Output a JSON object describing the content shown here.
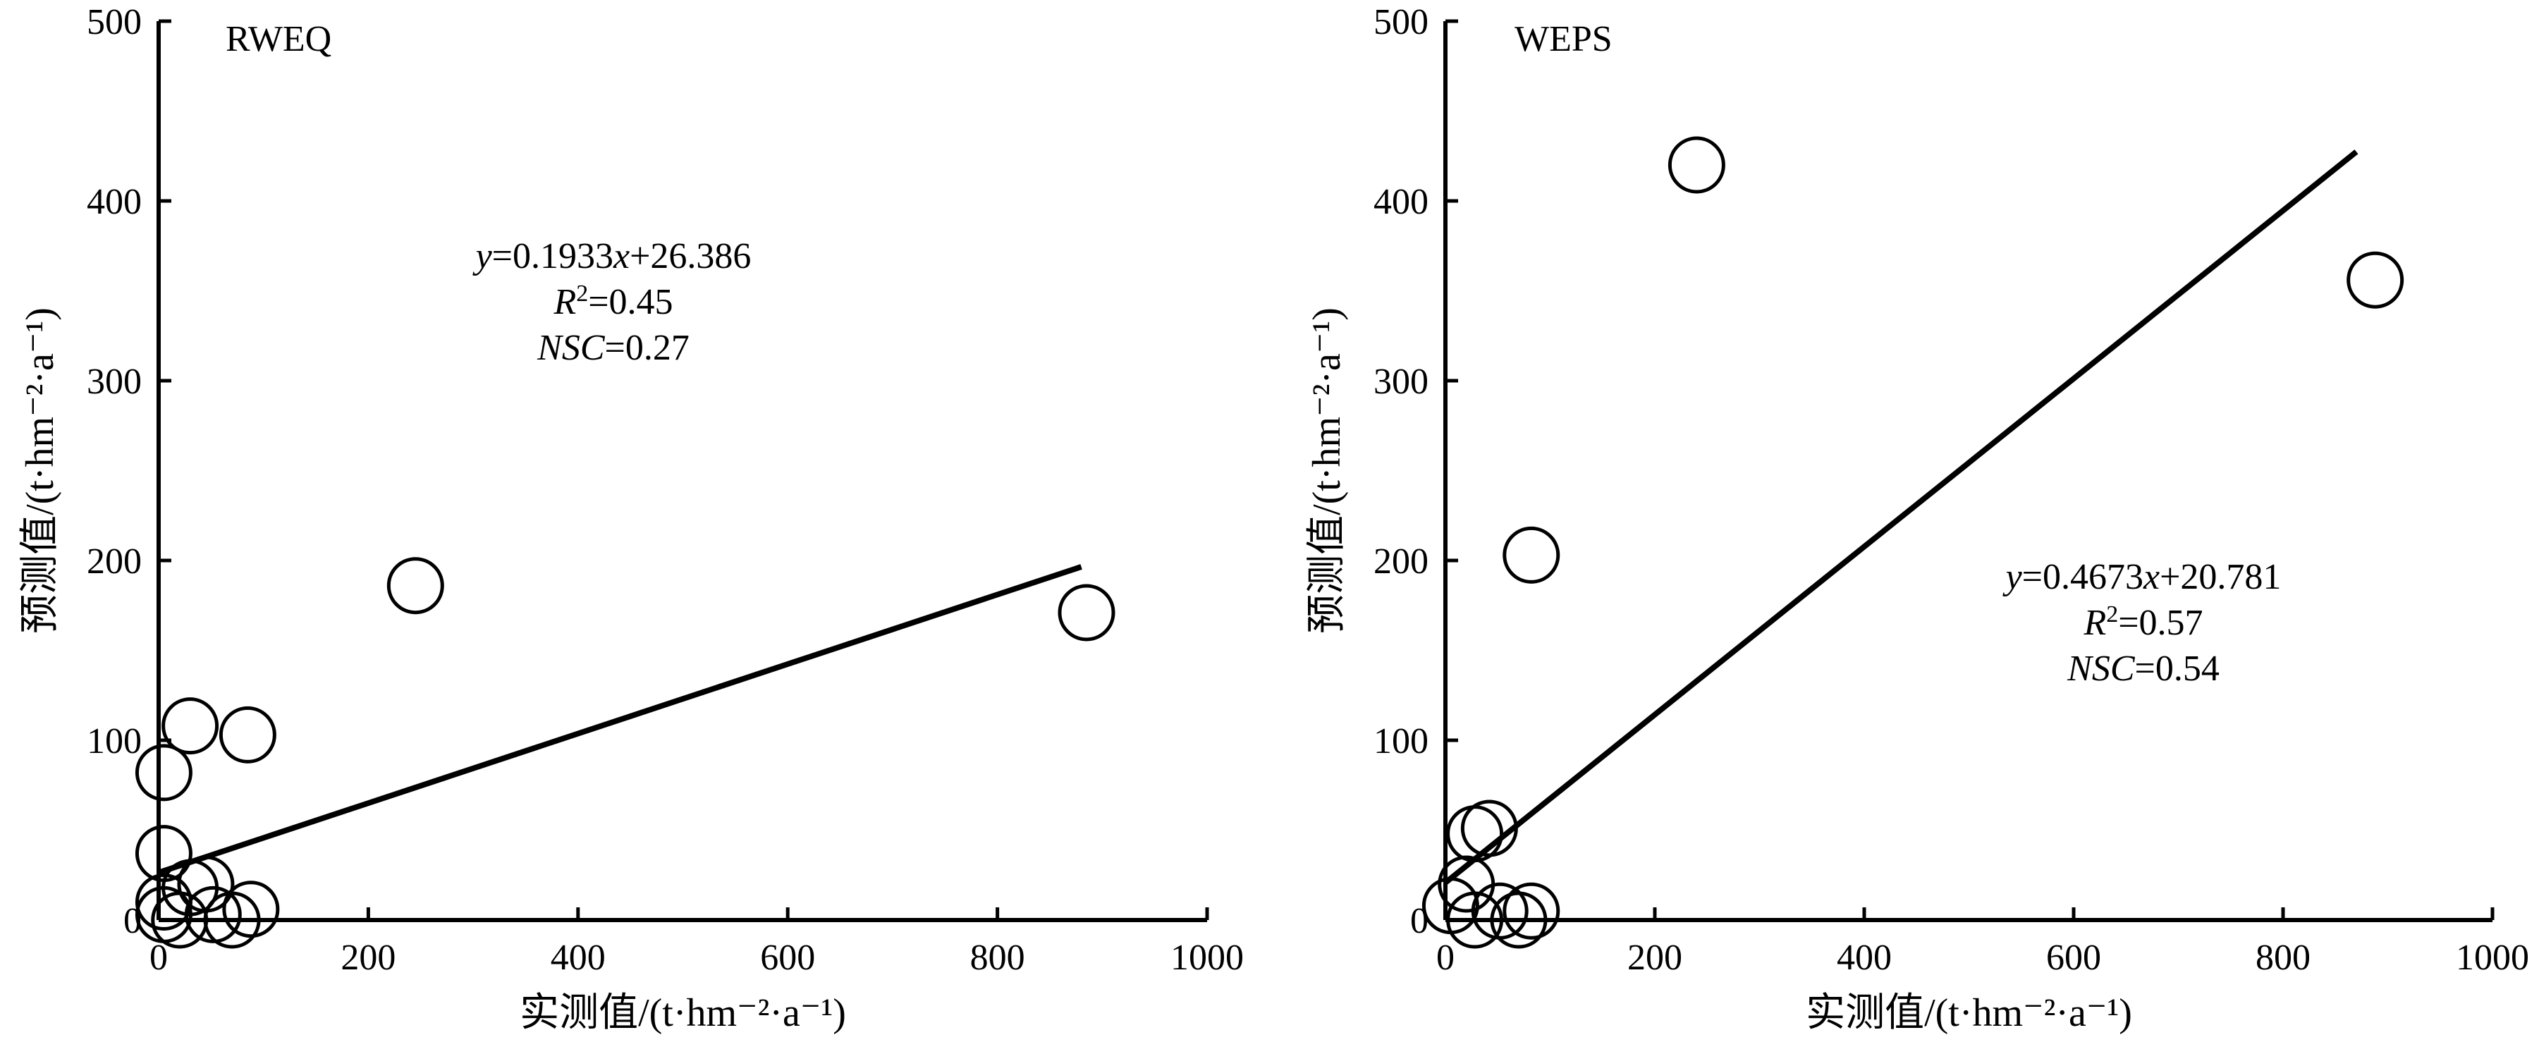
{
  "chart_data": [
    {
      "type": "scatter",
      "panel_label": "RWEQ",
      "xlabel": "实测值/(t·hm⁻²·a⁻¹)",
      "ylabel": "预测值/(t·hm⁻²·a⁻¹)",
      "xlim": [
        0,
        1000
      ],
      "ylim": [
        0,
        500
      ],
      "xticks": [
        0,
        200,
        400,
        600,
        800,
        1000
      ],
      "yticks": [
        0,
        100,
        200,
        300,
        400,
        500
      ],
      "grid": false,
      "points": [
        {
          "x": 5,
          "y": 82
        },
        {
          "x": 5,
          "y": 37
        },
        {
          "x": 5,
          "y": 10
        },
        {
          "x": 5,
          "y": 3
        },
        {
          "x": 20,
          "y": 0
        },
        {
          "x": 30,
          "y": 108
        },
        {
          "x": 30,
          "y": 18
        },
        {
          "x": 45,
          "y": 20
        },
        {
          "x": 52,
          "y": 3
        },
        {
          "x": 70,
          "y": 0
        },
        {
          "x": 85,
          "y": 103
        },
        {
          "x": 88,
          "y": 6
        },
        {
          "x": 245,
          "y": 186
        },
        {
          "x": 885,
          "y": 171
        }
      ],
      "fit": {
        "slope": 0.1933,
        "intercept": 26.386,
        "x_range": [
          0,
          880
        ]
      },
      "annotations": {
        "equation": {
          "y": "y",
          "eq1": "=0.1933",
          "x": "x",
          "eq2": "+26.386"
        },
        "r2": {
          "r": "R",
          "sup": "2",
          "val": "=0.45"
        },
        "nsc": {
          "name": "NSC",
          "val": "=0.27"
        }
      }
    },
    {
      "type": "scatter",
      "panel_label": "WEPS",
      "xlabel": "实测值/(t·hm⁻²·a⁻¹)",
      "ylabel": "预测值/(t·hm⁻²·a⁻¹)",
      "xlim": [
        0,
        1000
      ],
      "ylim": [
        0,
        500
      ],
      "xticks": [
        0,
        200,
        400,
        600,
        800,
        1000
      ],
      "yticks": [
        0,
        100,
        200,
        300,
        400,
        500
      ],
      "grid": false,
      "points": [
        {
          "x": 5,
          "y": 8
        },
        {
          "x": 20,
          "y": 20
        },
        {
          "x": 28,
          "y": 0
        },
        {
          "x": 28,
          "y": 48
        },
        {
          "x": 42,
          "y": 51
        },
        {
          "x": 52,
          "y": 5
        },
        {
          "x": 70,
          "y": 0
        },
        {
          "x": 82,
          "y": 5
        },
        {
          "x": 82,
          "y": 203
        },
        {
          "x": 240,
          "y": 420
        },
        {
          "x": 888,
          "y": 356
        }
      ],
      "fit": {
        "slope": 0.4673,
        "intercept": 20.781,
        "x_range": [
          0,
          870
        ]
      },
      "annotations": {
        "equation": {
          "y": "y",
          "eq1": "=0.4673",
          "x": "x",
          "eq2": "+20.781"
        },
        "r2": {
          "r": "R",
          "sup": "2",
          "val": "=0.57"
        },
        "nsc": {
          "name": "NSC",
          "val": "=0.54"
        }
      }
    }
  ]
}
